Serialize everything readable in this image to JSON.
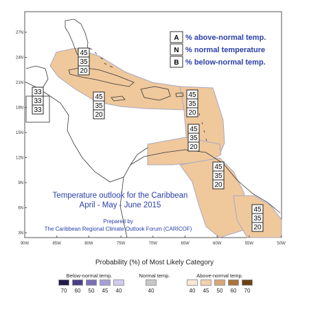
{
  "map": {
    "title_line1": "Temperature outlook for the Caribbean",
    "title_line2": "April - May - June 2015",
    "prepared_by_line1": "Prepared by",
    "prepared_by_line2": "The Caribbean Regional Climate Outlook Forum (CARICOF)",
    "lat_ticks": [
      "27N",
      "24N",
      "21N",
      "18N",
      "15N",
      "12N",
      "9N",
      "6N",
      "3N"
    ],
    "lon_ticks": [
      "90W",
      "85W",
      "80W",
      "75W",
      "70W",
      "65W",
      "60W",
      "55W",
      "50W"
    ],
    "legend_box": [
      {
        "key": "A",
        "text": "% above-normal temp."
      },
      {
        "key": "N",
        "text": "% normal temperature"
      },
      {
        "key": "B",
        "text": "% below-normal temp."
      }
    ],
    "regions": [
      {
        "name": "northern-caribbean",
        "above": "45",
        "normal": "35",
        "below": "20"
      },
      {
        "name": "central-america-north",
        "above": "33",
        "normal": "33",
        "below": "33"
      },
      {
        "name": "jamaica-area",
        "above": "45",
        "normal": "35",
        "below": "20"
      },
      {
        "name": "leeward-islands",
        "above": "45",
        "normal": "35",
        "below": "20"
      },
      {
        "name": "windward-islands",
        "above": "45",
        "normal": "35",
        "below": "20"
      },
      {
        "name": "northern-south-america",
        "above": "45",
        "normal": "35",
        "below": "20"
      },
      {
        "name": "guianas",
        "above": "45",
        "normal": "35",
        "below": "20"
      }
    ],
    "colors": {
      "forecast_fill": "#efc89c",
      "forecast_edge": "#a8a8c0",
      "coast": "#333333",
      "title": "#2a3fa8"
    }
  },
  "scale": {
    "title": "Probability (%) of Most Likely Category",
    "below_label": "Below-normal temp.",
    "normal_label": "Normal temp.",
    "above_label": "Above-normal temp.",
    "below": [
      {
        "label": "70",
        "color": "#241a4c"
      },
      {
        "label": "60",
        "color": "#4a3e86"
      },
      {
        "label": "50",
        "color": "#7a70b4"
      },
      {
        "label": "45",
        "color": "#a7a0d6"
      },
      {
        "label": "40",
        "color": "#d0ccee"
      }
    ],
    "normal": [
      {
        "label": "40",
        "color": "#c8c8c8"
      }
    ],
    "above": [
      {
        "label": "40",
        "color": "#fbe8d6"
      },
      {
        "label": "45",
        "color": "#f3d1ad"
      },
      {
        "label": "50",
        "color": "#d8a878"
      },
      {
        "label": "60",
        "color": "#a9723d"
      },
      {
        "label": "70",
        "color": "#6b4214"
      }
    ]
  }
}
